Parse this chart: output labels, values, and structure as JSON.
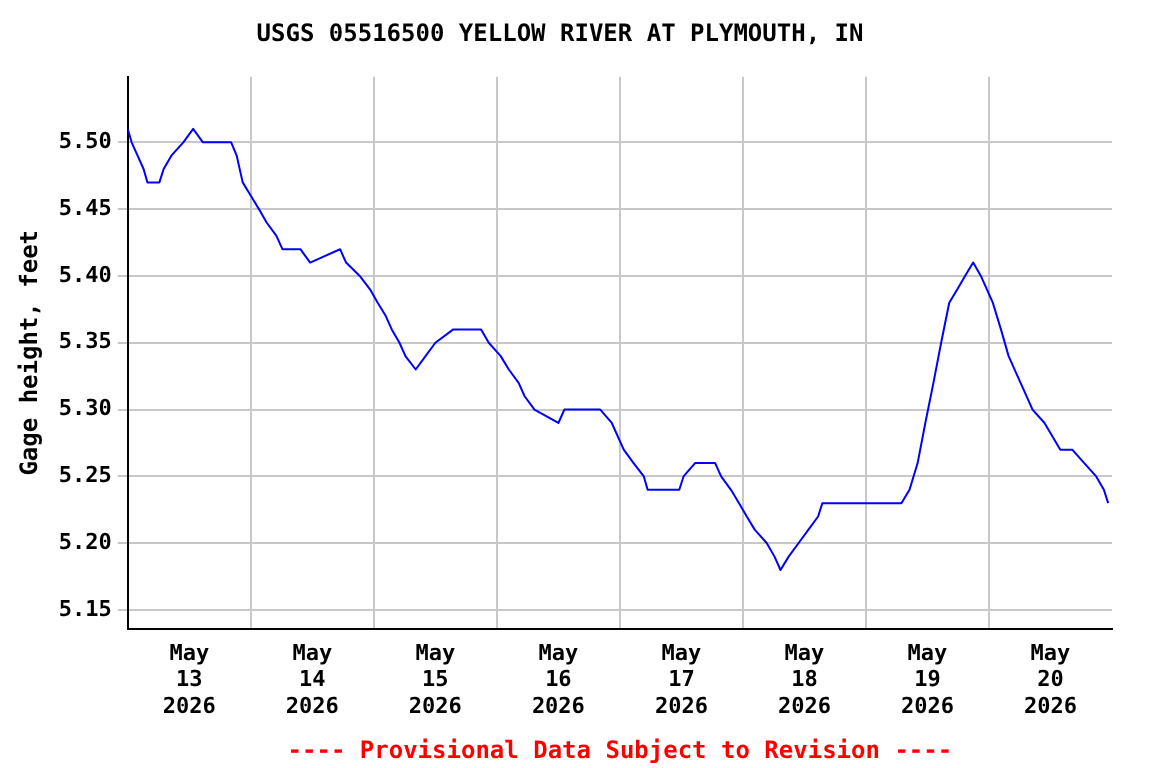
{
  "chart_data": {
    "type": "line",
    "title": "USGS 05516500 YELLOW RIVER AT PLYMOUTH, IN",
    "ylabel": "Gage height, feet",
    "annotations": [
      "---- Provisional Data Subject to Revision ----"
    ],
    "x": [
      "2026-05-13T00:00",
      "2026-05-13T00:45",
      "2026-05-13T01:55",
      "2026-05-13T03:05",
      "2026-05-13T03:50",
      "2026-05-13T06:10",
      "2026-05-13T07:00",
      "2026-05-13T08:30",
      "2026-05-13T10:50",
      "2026-05-13T12:45",
      "2026-05-13T14:40",
      "2026-05-13T20:10",
      "2026-05-13T21:15",
      "2026-05-13T22:25",
      "2026-05-14T00:00",
      "2026-05-14T01:35",
      "2026-05-14T03:05",
      "2026-05-14T05:00",
      "2026-05-14T06:10",
      "2026-05-14T09:40",
      "2026-05-14T11:35",
      "2026-05-14T17:25",
      "2026-05-14T18:35",
      "2026-05-14T21:15",
      "2026-05-14T23:15",
      "2026-05-15T00:45",
      "2026-05-15T02:20",
      "2026-05-15T03:30",
      "2026-05-15T05:00",
      "2026-05-15T06:10",
      "2026-05-15T08:10",
      "2026-05-15T10:05",
      "2026-05-15T12:00",
      "2026-05-15T15:30",
      "2026-05-15T20:55",
      "2026-05-15T22:25",
      "2026-05-16T00:45",
      "2026-05-16T02:20",
      "2026-05-16T04:15",
      "2026-05-16T05:25",
      "2026-05-16T07:20",
      "2026-05-16T12:00",
      "2026-05-16T13:10",
      "2026-05-16T20:10",
      "2026-05-16T22:25",
      "2026-05-17T00:45",
      "2026-05-17T02:40",
      "2026-05-17T04:40",
      "2026-05-17T05:25",
      "2026-05-17T11:35",
      "2026-05-17T12:25",
      "2026-05-17T14:40",
      "2026-05-17T18:35",
      "2026-05-17T19:45",
      "2026-05-17T21:40",
      "2026-05-17T23:15",
      "2026-05-18T00:45",
      "2026-05-18T02:20",
      "2026-05-18T04:40",
      "2026-05-18T06:10",
      "2026-05-18T07:20",
      "2026-05-18T08:55",
      "2026-05-18T10:50",
      "2026-05-18T12:45",
      "2026-05-18T14:40",
      "2026-05-18T15:30",
      "2026-05-19T03:50",
      "2026-05-19T06:55",
      "2026-05-19T08:30",
      "2026-05-19T10:05",
      "2026-05-19T11:35",
      "2026-05-19T13:10",
      "2026-05-19T14:40",
      "2026-05-19T16:15",
      "2026-05-19T17:50",
      "2026-05-19T19:20",
      "2026-05-19T20:55",
      "2026-05-19T22:25",
      "2026-05-20T00:45",
      "2026-05-20T02:20",
      "2026-05-20T03:50",
      "2026-05-20T06:10",
      "2026-05-20T08:30",
      "2026-05-20T10:50",
      "2026-05-20T13:55",
      "2026-05-20T16:15",
      "2026-05-20T18:35",
      "2026-05-20T20:55",
      "2026-05-20T22:25",
      "2026-05-20T23:15"
    ],
    "series": [
      {
        "color": "#0000ff",
        "values": [
          5.51,
          5.5,
          5.49,
          5.48,
          5.47,
          5.47,
          5.48,
          5.49,
          5.5,
          5.51,
          5.5,
          5.5,
          5.49,
          5.47,
          5.46,
          5.45,
          5.44,
          5.43,
          5.42,
          5.42,
          5.41,
          5.42,
          5.41,
          5.4,
          5.39,
          5.38,
          5.37,
          5.36,
          5.35,
          5.34,
          5.33,
          5.34,
          5.35,
          5.36,
          5.36,
          5.35,
          5.34,
          5.33,
          5.32,
          5.31,
          5.3,
          5.29,
          5.3,
          5.3,
          5.29,
          5.27,
          5.26,
          5.25,
          5.24,
          5.24,
          5.25,
          5.26,
          5.26,
          5.25,
          5.24,
          5.23,
          5.22,
          5.21,
          5.2,
          5.19,
          5.18,
          5.19,
          5.2,
          5.21,
          5.22,
          5.23,
          5.23,
          5.23,
          5.24,
          5.26,
          5.29,
          5.32,
          5.35,
          5.38,
          5.39,
          5.4,
          5.41,
          5.4,
          5.38,
          5.36,
          5.34,
          5.32,
          5.3,
          5.29,
          5.27,
          5.27,
          5.26,
          5.25,
          5.24,
          5.23
        ]
      }
    ],
    "xlim": [
      "2026-05-13T00:00",
      "2026-05-21T00:00"
    ],
    "xticks": [
      {
        "value": "2026-05-13T12:00",
        "label": "May\n13\n2026"
      },
      {
        "value": "2026-05-14T00:00",
        "label": null
      },
      {
        "value": "2026-05-14T12:00",
        "label": "May\n14\n2026"
      },
      {
        "value": "2026-05-15T00:00",
        "label": null
      },
      {
        "value": "2026-05-15T12:00",
        "label": "May\n15\n2026"
      },
      {
        "value": "2026-05-16T00:00",
        "label": null
      },
      {
        "value": "2026-05-16T12:00",
        "label": "May\n16\n2026"
      },
      {
        "value": "2026-05-17T00:00",
        "label": null
      },
      {
        "value": "2026-05-17T12:00",
        "label": "May\n17\n2026"
      },
      {
        "value": "2026-05-18T00:00",
        "label": null
      },
      {
        "value": "2026-05-18T12:00",
        "label": "May\n18\n2026"
      },
      {
        "value": "2026-05-19T00:00",
        "label": null
      },
      {
        "value": "2026-05-19T12:00",
        "label": "May\n19\n2026"
      },
      {
        "value": "2026-05-20T00:00",
        "label": null
      },
      {
        "value": "2026-05-20T12:00",
        "label": "May\n20\n2026"
      }
    ],
    "ylim": [
      5.136,
      5.549
    ],
    "yticks": [
      5.15,
      {
        "value": 5.2,
        "label": "5.20"
      },
      5.25,
      {
        "value": 5.3,
        "label": "5.30"
      },
      5.35,
      {
        "value": 5.4,
        "label": "5.40"
      },
      5.45,
      {
        "value": 5.5,
        "label": "5.50"
      }
    ],
    "grid": true,
    "legend": false,
    "marker": "none",
    "line_style": "solid"
  }
}
